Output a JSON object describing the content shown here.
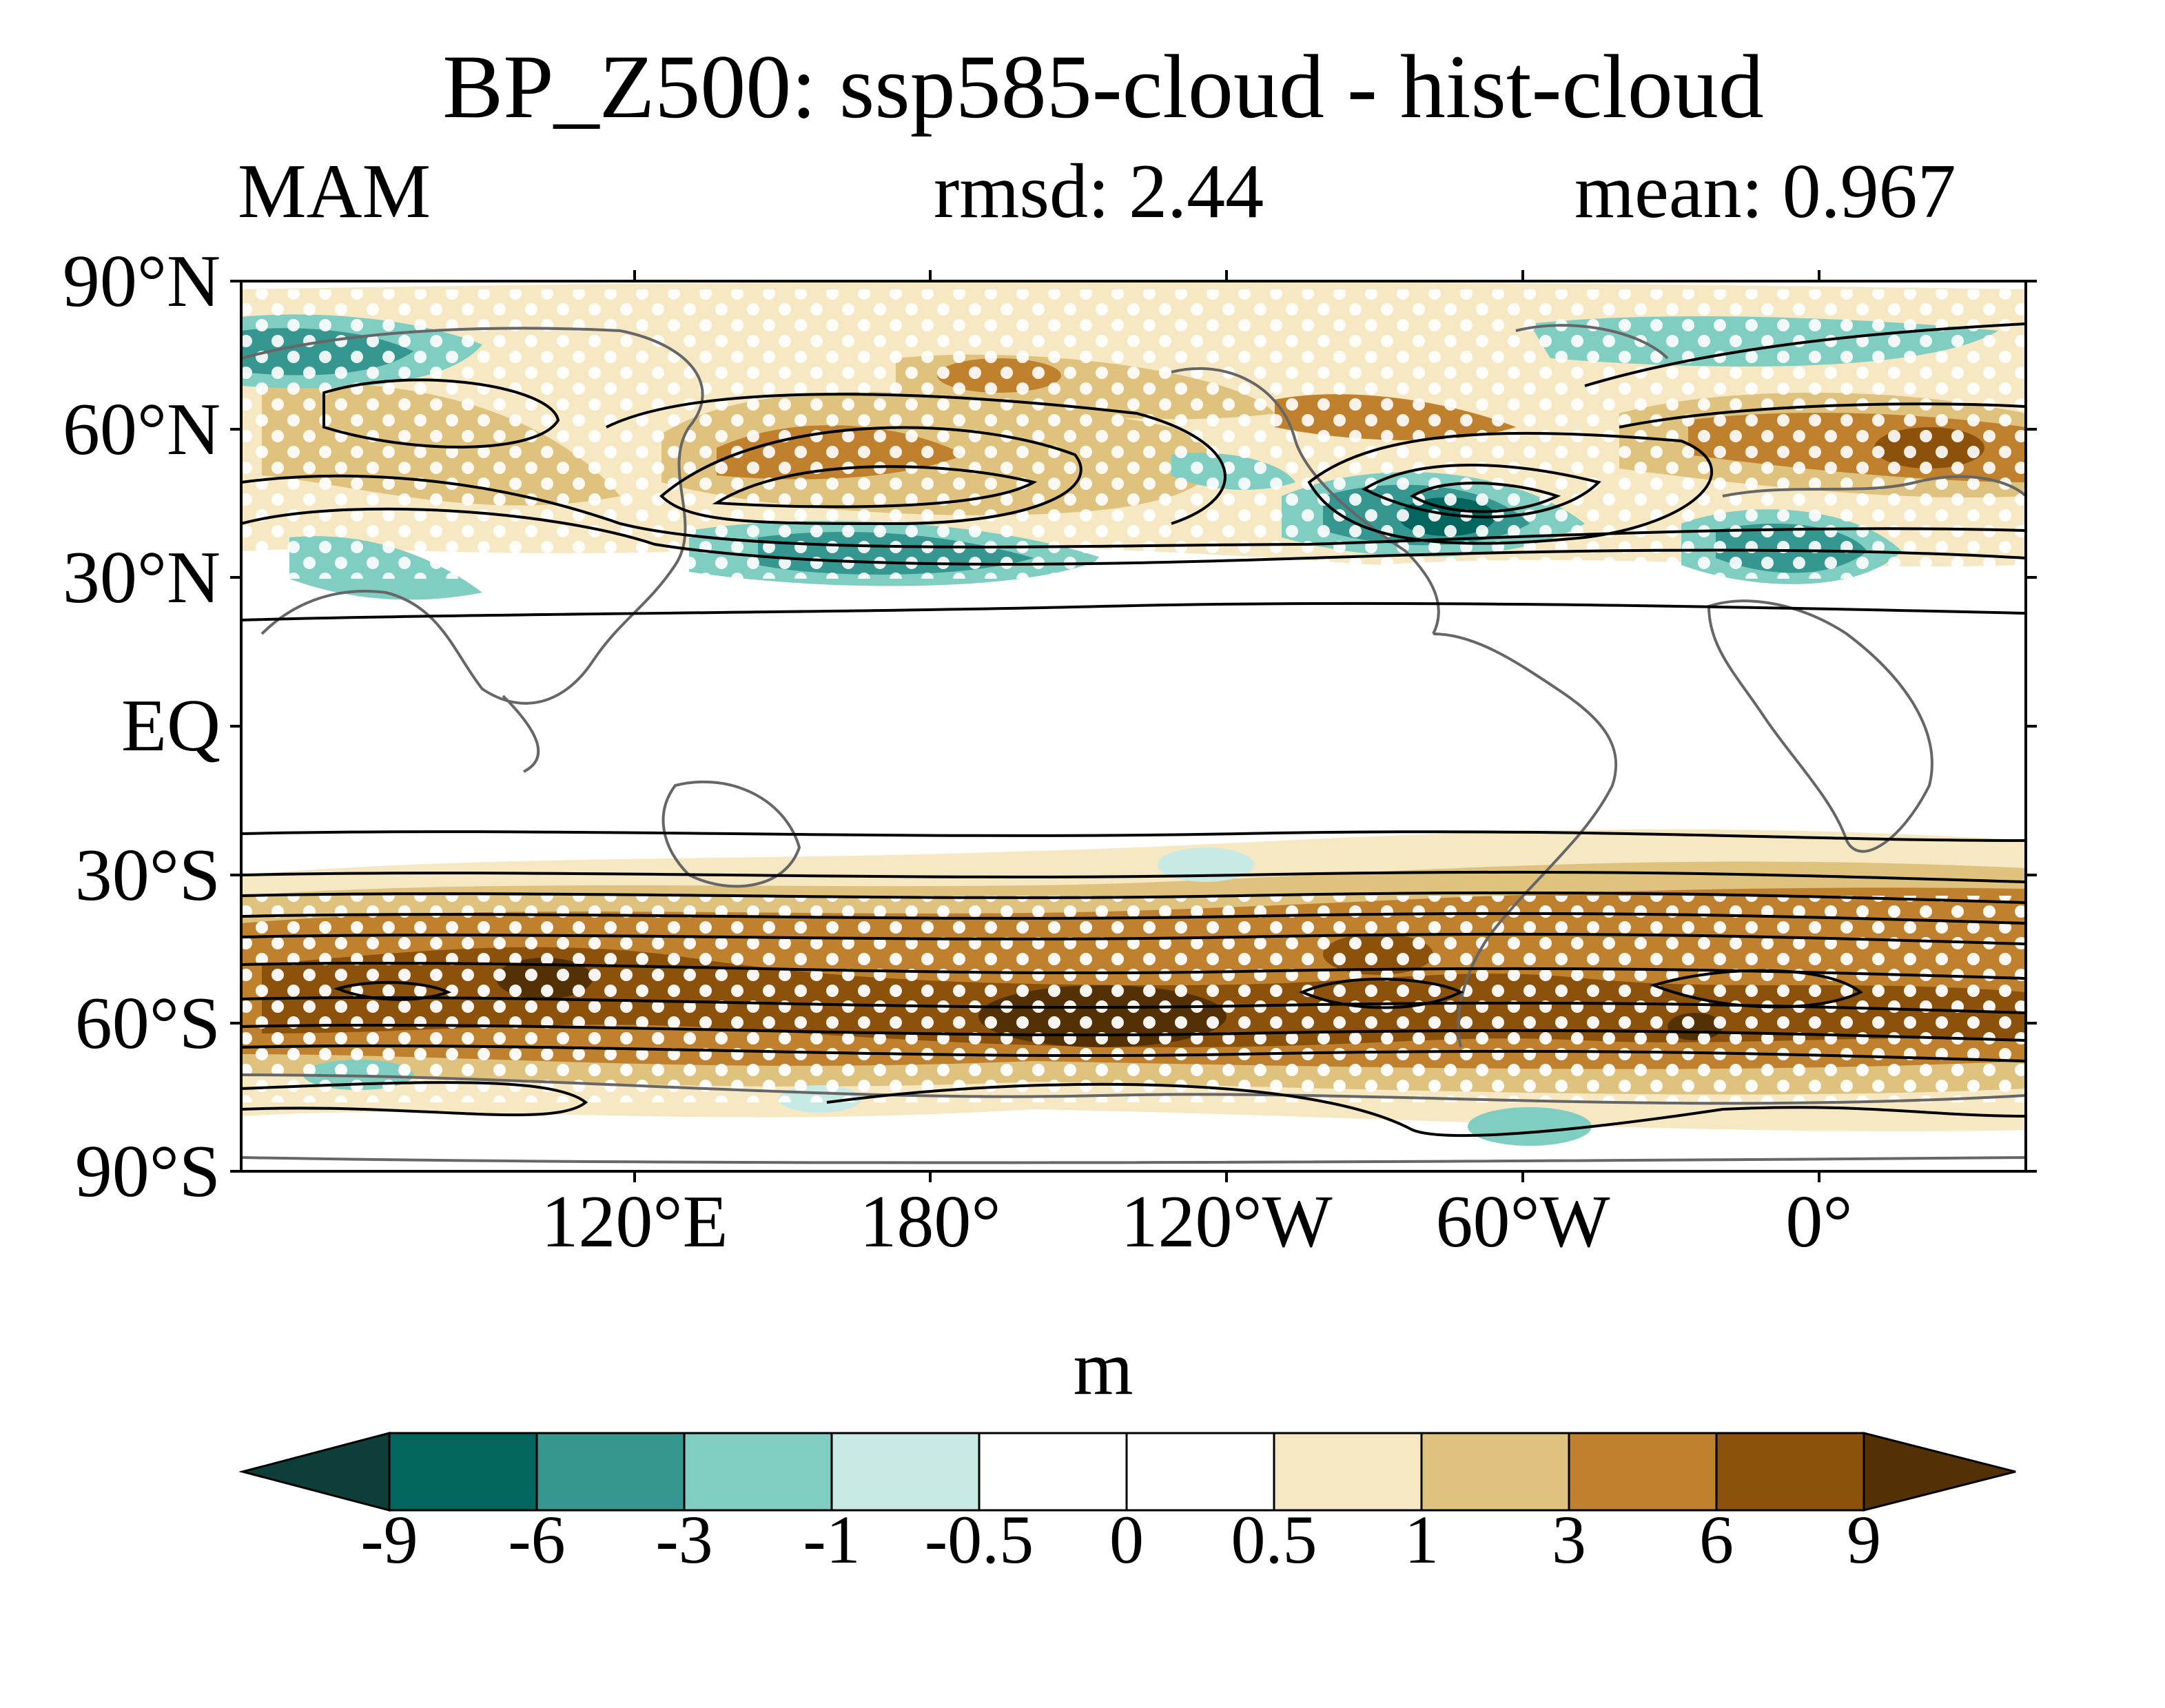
{
  "title": "BP_Z500: ssp585-cloud - hist-cloud",
  "season": "MAM",
  "rmsd": "rmsd: 2.44",
  "mean": "mean: 0.967",
  "units": "m",
  "lat_labels": [
    "90°N",
    "60°N",
    "30°N",
    "EQ",
    "30°S",
    "60°S",
    "90°S"
  ],
  "lon_labels": [
    "120°E",
    "180°",
    "120°W",
    "60°W",
    "0°"
  ],
  "colorbar": {
    "levels": [
      "-9",
      "-6",
      "-3",
      "-1",
      "-0.5",
      "0",
      "0.5",
      "1",
      "3",
      "6",
      "9"
    ],
    "colors": [
      "#0d3f38",
      "#03665e",
      "#35978f",
      "#80cdc1",
      "#c7eae5",
      "#ffffff",
      "#ffffff",
      "#f6e8c3",
      "#dfc27d",
      "#bf812d",
      "#8c510a",
      "#543005"
    ]
  },
  "map_colors": {
    "pos_light": "#f6e8c3",
    "pos_mid": "#dfc27d",
    "pos_strong": "#bf812d",
    "pos_stronger": "#8c510a",
    "pos_max": "#543005",
    "neg_light": "#c7eae5",
    "neg_mid": "#80cdc1",
    "neg_strong": "#35978f",
    "neg_stronger": "#03665e",
    "coast": "#666666",
    "contour": "#000000",
    "stipple": "#ffffff"
  }
}
